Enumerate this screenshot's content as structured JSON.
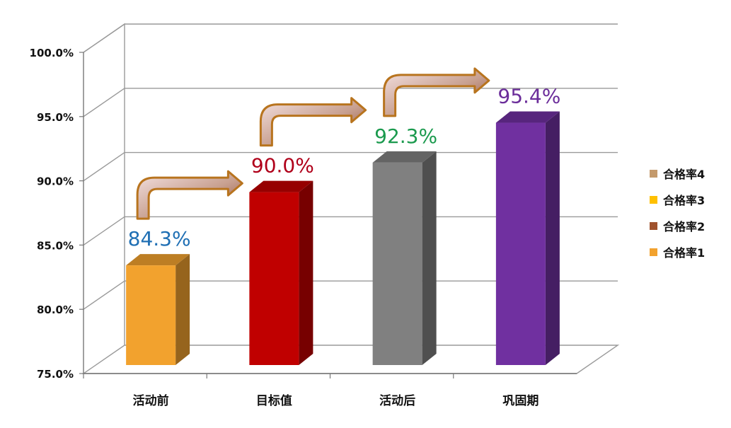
{
  "chart_data": {
    "type": "bar",
    "categories": [
      "活动前",
      "目标值",
      "活动后",
      "巩固期"
    ],
    "values": [
      84.3,
      90.0,
      92.3,
      95.4
    ],
    "value_labels": [
      "84.3%",
      "90.0%",
      "92.3%",
      "95.4%"
    ],
    "bar_colors": [
      "#F2A22E",
      "#C00000",
      "#808080",
      "#7030A0"
    ],
    "label_colors": [
      "#1F6FB4",
      "#B0001A",
      "#1B9A4E",
      "#6B2D9A"
    ],
    "ylim": [
      75,
      100
    ],
    "yticks": [
      "75.0%",
      "80.0%",
      "85.0%",
      "90.0%",
      "95.0%",
      "100.0%"
    ],
    "grid": true,
    "legend_position": "right",
    "legend": [
      {
        "label": "合格率4",
        "color": "#C49A6C"
      },
      {
        "label": "合格率3",
        "color": "#FFC000"
      },
      {
        "label": "合格率2",
        "color": "#A0522D"
      },
      {
        "label": "合格率1",
        "color": "#F2A22E"
      }
    ],
    "style": "3d-column",
    "annotations": "curved arrows between consecutive bars"
  }
}
